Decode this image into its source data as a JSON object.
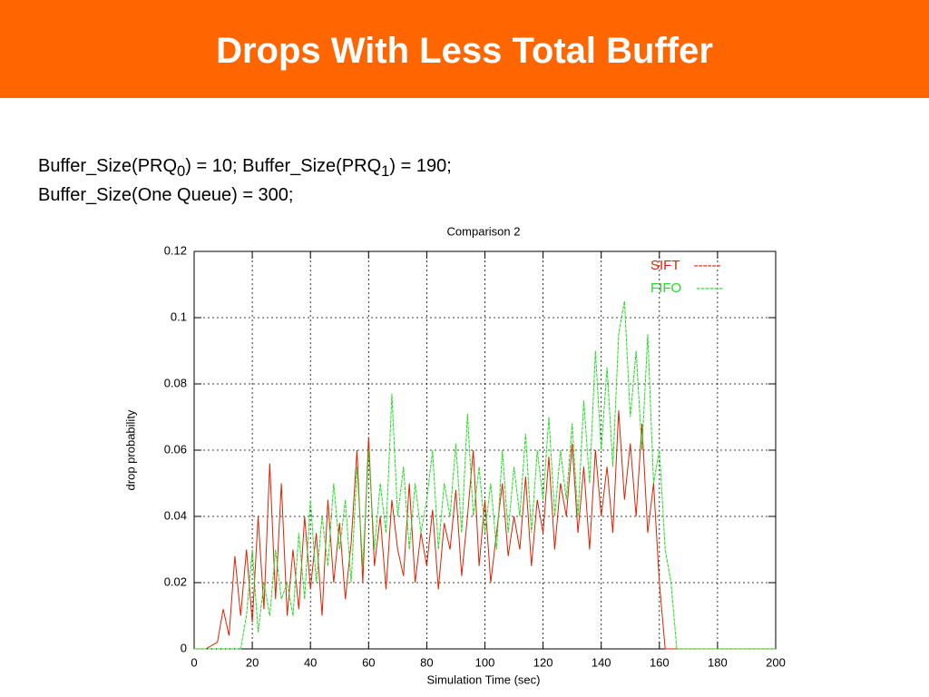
{
  "header": {
    "title": "Drops With Less Total Buffer"
  },
  "subtitle": {
    "line1": [
      "Buffer_Size(PRQ",
      "0",
      ") = 10; Buffer_Size(PRQ",
      "1",
      ") = 190;"
    ],
    "line2": "Buffer_Size(One Queue) = 300;"
  },
  "chart_data": {
    "type": "line",
    "title": "Comparison 2",
    "x_label": "Simulation Time (sec)",
    "y_label": "drop probability",
    "xlim": [
      0,
      200
    ],
    "ylim": [
      0,
      0.12
    ],
    "xticks": [
      0,
      20,
      40,
      60,
      80,
      100,
      120,
      140,
      160,
      180,
      200
    ],
    "yticks": [
      0,
      0.02,
      0.04,
      0.06,
      0.08,
      0.1,
      0.12
    ],
    "grid": true,
    "legend": "top-right",
    "legend_sample": "------",
    "x": [
      0,
      2,
      4,
      6,
      8,
      10,
      12,
      14,
      16,
      18,
      20,
      22,
      24,
      26,
      28,
      30,
      32,
      34,
      36,
      38,
      40,
      42,
      44,
      46,
      48,
      50,
      52,
      54,
      56,
      58,
      60,
      62,
      64,
      66,
      68,
      70,
      72,
      74,
      76,
      78,
      80,
      82,
      84,
      86,
      88,
      90,
      92,
      94,
      96,
      98,
      100,
      102,
      104,
      106,
      108,
      110,
      112,
      114,
      116,
      118,
      120,
      122,
      124,
      126,
      128,
      130,
      132,
      134,
      136,
      138,
      140,
      142,
      144,
      146,
      148,
      150,
      152,
      154,
      156,
      158,
      160,
      162,
      164,
      166,
      168,
      170,
      172,
      174,
      176,
      178,
      180,
      182,
      184,
      186,
      188,
      190,
      192,
      194,
      196,
      198,
      200
    ],
    "series": [
      {
        "name": "SIFT",
        "color": "#e02000",
        "values": [
          0,
          0,
          0,
          0.001,
          0.002,
          0.012,
          0.004,
          0.028,
          0.01,
          0.03,
          0.008,
          0.04,
          0.012,
          0.056,
          0.015,
          0.05,
          0.01,
          0.03,
          0.012,
          0.04,
          0.018,
          0.035,
          0.01,
          0.045,
          0.02,
          0.038,
          0.015,
          0.032,
          0.06,
          0.02,
          0.064,
          0.025,
          0.04,
          0.018,
          0.045,
          0.03,
          0.022,
          0.05,
          0.02,
          0.035,
          0.025,
          0.042,
          0.018,
          0.038,
          0.03,
          0.048,
          0.022,
          0.04,
          0.06,
          0.025,
          0.045,
          0.02,
          0.035,
          0.05,
          0.028,
          0.04,
          0.03,
          0.052,
          0.025,
          0.045,
          0.035,
          0.058,
          0.03,
          0.05,
          0.04,
          0.062,
          0.035,
          0.055,
          0.03,
          0.06,
          0.04,
          0.055,
          0.035,
          0.072,
          0.045,
          0.062,
          0.04,
          0.068,
          0.035,
          0.05,
          0.02,
          0,
          0,
          0,
          0,
          0,
          0,
          0,
          0,
          0,
          0,
          0,
          0,
          0,
          0,
          0,
          0,
          0,
          0,
          0,
          0
        ]
      },
      {
        "name": "FIFO",
        "color": "#22dd22",
        "values": [
          0,
          0,
          0,
          0,
          0,
          0,
          0,
          0,
          0,
          0.01,
          0.03,
          0.005,
          0.02,
          0.01,
          0.03,
          0.015,
          0.02,
          0.01,
          0.035,
          0.015,
          0.045,
          0.02,
          0.04,
          0.025,
          0.05,
          0.03,
          0.045,
          0.02,
          0.055,
          0.025,
          0.06,
          0.03,
          0.05,
          0.035,
          0.077,
          0.04,
          0.055,
          0.03,
          0.05,
          0.035,
          0.045,
          0.06,
          0.03,
          0.05,
          0.04,
          0.062,
          0.035,
          0.071,
          0.04,
          0.055,
          0.035,
          0.05,
          0.03,
          0.06,
          0.035,
          0.055,
          0.04,
          0.065,
          0.035,
          0.06,
          0.045,
          0.07,
          0.04,
          0.06,
          0.045,
          0.068,
          0.04,
          0.075,
          0.05,
          0.09,
          0.06,
          0.085,
          0.055,
          0.095,
          0.105,
          0.07,
          0.09,
          0.06,
          0.095,
          0.05,
          0.06,
          0.03,
          0.02,
          0,
          0,
          0,
          0,
          0,
          0,
          0,
          0,
          0,
          0,
          0,
          0,
          0,
          0,
          0,
          0,
          0,
          0
        ]
      }
    ]
  }
}
